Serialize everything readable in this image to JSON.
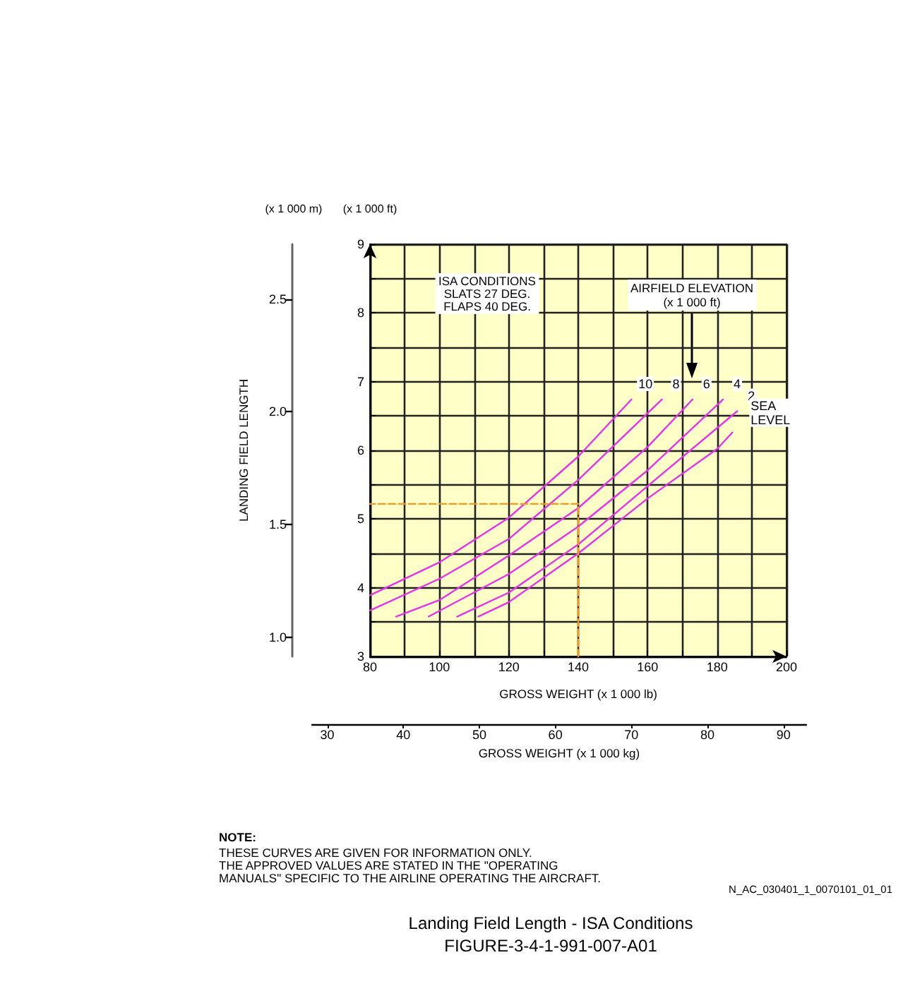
{
  "chart_data": {
    "type": "line",
    "title": "Landing Field Length - ISA Conditions",
    "subtitle": "FIGURE-3-4-1-991-007-A01",
    "xlabel": "GROSS WEIGHT (x 1 000 lb)",
    "x2label": "GROSS WEIGHT (x 1 000 kg)",
    "y2label": "LANDING FIELD LENGTH",
    "legend_title": "AIRFIELD ELEVATION\n(x 1 000 ft)",
    "annotations": [
      "ISA CONDITIONS\nSLATS 27 DEG.\nFLAPS 40 DEG.",
      "(x 1 000 ft)",
      "(x 1 000 m)",
      "NOTE:",
      "THESE CURVES ARE GIVEN FOR INFORMATION ONLY.\nTHE APPROVED VALUES ARE STATED IN THE \"OPERATING\nMANUALS\" SPECIFIC TO THE AIRLINE OPERATING THE AIRCRAFT.",
      "N_AC_030401_1_0070101_01_01"
    ],
    "series": [
      {
        "name": "10",
        "color": "#e832e8",
        "x": [
          80,
          100,
          120,
          140,
          155.3
        ],
        "values": [
          3.89,
          4.37,
          5.02,
          5.91,
          6.74
        ]
      },
      {
        "name": "8",
        "color": "#e832e8",
        "x": [
          80,
          100,
          120,
          140,
          164.1
        ],
        "values": [
          3.67,
          4.13,
          4.71,
          5.57,
          6.74
        ]
      },
      {
        "name": "6",
        "color": "#e832e8",
        "x": [
          87.5,
          100,
          120,
          140,
          160,
          172.9
        ],
        "values": [
          3.58,
          3.82,
          4.47,
          5.16,
          6.05,
          6.74
        ]
      },
      {
        "name": "4",
        "color": "#e832e8",
        "x": [
          96.9,
          120,
          140,
          160,
          181.7
        ],
        "values": [
          3.58,
          4.2,
          4.89,
          5.71,
          6.74
        ]
      },
      {
        "name": "2",
        "color": "#e832e8",
        "x": [
          105.1,
          120,
          140,
          160,
          185.8
        ],
        "values": [
          3.58,
          3.93,
          4.63,
          5.48,
          6.57
        ]
      },
      {
        "name": "SEA LEVEL",
        "color": "#e832e8",
        "x": [
          111.2,
          120,
          140,
          160,
          180,
          184.4
        ],
        "values": [
          3.58,
          3.79,
          4.5,
          5.3,
          6.02,
          6.26
        ]
      },
      {
        "color": "#f59a1c",
        "line_style": "dashed",
        "x": [
          140,
          140,
          80
        ],
        "values": [
          3,
          5.22,
          5.22
        ]
      }
    ],
    "xlim": [
      80,
      200
    ],
    "xticks": [
      80,
      {
        "value": 90,
        "label": null
      },
      100,
      {
        "value": 110,
        "label": null
      },
      120,
      {
        "value": 130,
        "label": null
      },
      140,
      {
        "value": 150,
        "label": null
      },
      160,
      {
        "value": 170,
        "label": null
      },
      180,
      {
        "value": 190,
        "label": null
      },
      200
    ],
    "ylim": [
      3,
      9
    ],
    "yticks": [
      3,
      {
        "value": 3.5,
        "label": null
      },
      4,
      {
        "value": 4.5,
        "label": null
      },
      5,
      {
        "value": 5.5,
        "label": null
      },
      6,
      {
        "value": 6.5,
        "label": null
      },
      7,
      {
        "value": 7.5,
        "label": null
      },
      8,
      {
        "value": 8.5,
        "label": null
      },
      9
    ],
    "y2lim": [
      0.914,
      2.743
    ],
    "y2ticks": [
      {
        "value": 1,
        "label": "1.0"
      },
      {
        "value": 1.5,
        "label": "1.5"
      },
      {
        "value": 2,
        "label": "2.0"
      },
      {
        "value": 2.5,
        "label": "2.5"
      }
    ],
    "x2lim": [
      28,
      93
    ],
    "x2ticks": [
      30,
      40,
      50,
      60,
      70,
      80,
      90
    ],
    "grid": true,
    "marker": "none",
    "line_style": "solid"
  }
}
